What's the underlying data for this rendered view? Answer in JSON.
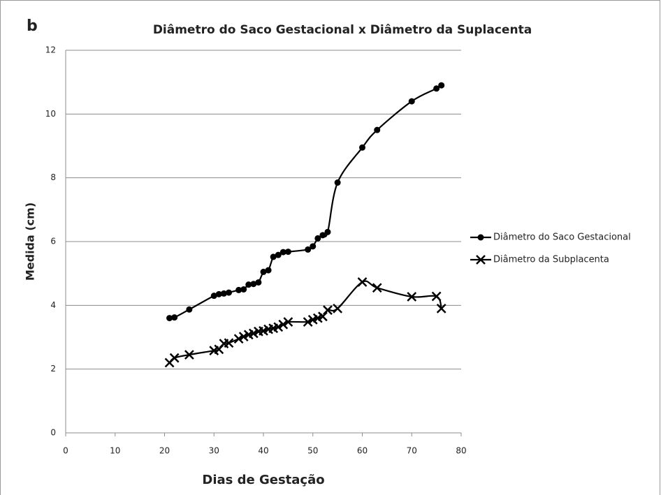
{
  "chart_data": {
    "type": "line",
    "panel_label": "b",
    "title": "Diâmetro do Saco Gestacional x Diâmetro da Suplacenta",
    "x_label": "Dias de Gestação",
    "y_label": "Medida (cm)",
    "xlim": [
      0,
      80
    ],
    "xticks": [
      0,
      10,
      20,
      30,
      40,
      50,
      60,
      70,
      80
    ],
    "ylim": [
      0,
      12
    ],
    "yticks": [
      0,
      2,
      4,
      6,
      8,
      10,
      12
    ],
    "grid": true,
    "legend": "right",
    "series": [
      {
        "name": "Diâmetro do Saco Gestacional",
        "color": "#000000",
        "marker": "circle",
        "x": [
          21,
          22,
          25,
          30,
          31,
          32,
          33,
          35,
          36,
          37,
          38,
          39,
          40,
          41,
          42,
          43,
          44,
          45,
          49,
          50,
          51,
          52,
          53,
          55,
          60,
          63,
          70,
          75,
          76
        ],
        "values": [
          3.6,
          3.62,
          3.87,
          4.3,
          4.35,
          4.37,
          4.4,
          4.48,
          4.5,
          4.65,
          4.67,
          4.72,
          5.05,
          5.1,
          5.52,
          5.58,
          5.67,
          5.68,
          5.75,
          5.85,
          6.1,
          6.2,
          6.3,
          7.85,
          8.95,
          9.5,
          10.4,
          10.8,
          10.9
        ]
      },
      {
        "name": "Diâmetro da Subplacenta",
        "color": "#000000",
        "marker": "x",
        "x": [
          21,
          22,
          25,
          30,
          31,
          32,
          33,
          35,
          36,
          37,
          38,
          39,
          40,
          41,
          42,
          43,
          44,
          45,
          49,
          50,
          51,
          52,
          53,
          55,
          60,
          63,
          70,
          75,
          76
        ],
        "values": [
          2.2,
          2.35,
          2.45,
          2.58,
          2.62,
          2.8,
          2.82,
          2.95,
          3.02,
          3.08,
          3.12,
          3.18,
          3.2,
          3.25,
          3.28,
          3.32,
          3.4,
          3.48,
          3.48,
          3.55,
          3.6,
          3.65,
          3.85,
          3.9,
          4.73,
          4.55,
          4.27,
          4.28,
          3.9
        ]
      }
    ]
  }
}
